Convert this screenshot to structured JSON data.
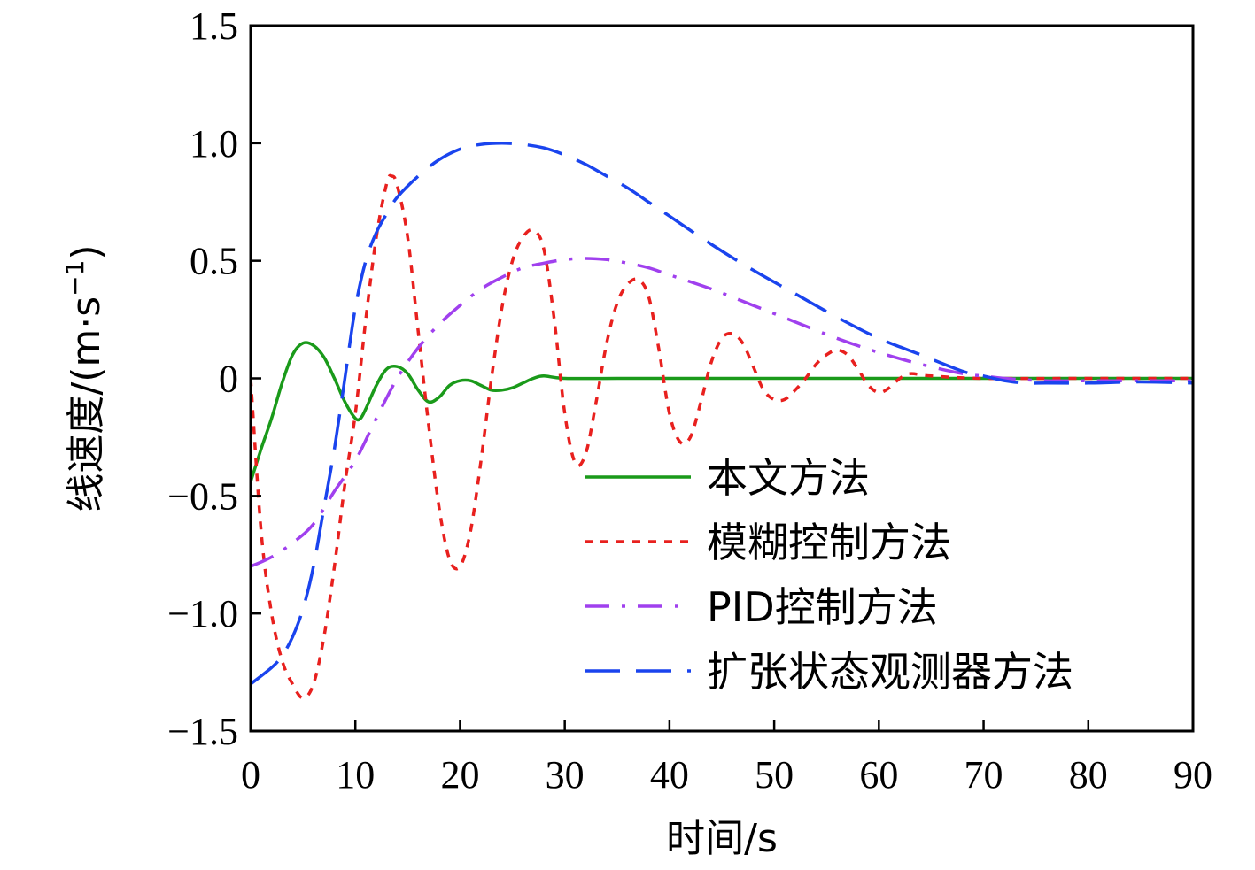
{
  "chart_data": {
    "type": "line",
    "title": "",
    "xlabel": "时间/s",
    "ylabel_main": "线速度/(m·s",
    "ylabel_sup": "−1",
    "ylabel_close": ")",
    "xlim": [
      0,
      90
    ],
    "ylim": [
      -1.5,
      1.5
    ],
    "xticks": [
      0,
      10,
      20,
      30,
      40,
      50,
      60,
      70,
      80,
      90
    ],
    "xtick_labels": [
      "0",
      "10",
      "20",
      "30",
      "40",
      "50",
      "60",
      "70",
      "80",
      "90"
    ],
    "yticks": [
      1.5,
      1.0,
      0.5,
      0,
      -0.5,
      -1.0,
      -1.5
    ],
    "ytick_labels": [
      "1.5",
      "1.0",
      "0.5",
      "0",
      "−0.5",
      "−1.0",
      "−1.5"
    ],
    "legend_position": "center-right",
    "series": [
      {
        "name": "本文方法",
        "color": "#1a9a1a",
        "dash": "solid",
        "x": [
          0,
          1,
          2,
          3,
          4,
          5,
          6,
          7,
          8,
          9,
          10,
          10.5,
          11,
          12,
          13,
          14,
          15,
          16,
          17,
          18,
          19,
          20,
          21,
          22,
          23,
          24,
          25,
          26,
          27,
          28,
          30,
          35,
          40,
          50,
          60,
          70,
          80,
          90
        ],
        "y": [
          -0.44,
          -0.3,
          -0.17,
          -0.02,
          0.1,
          0.15,
          0.14,
          0.09,
          0.0,
          -0.1,
          -0.17,
          -0.17,
          -0.13,
          -0.03,
          0.04,
          0.05,
          0.02,
          -0.05,
          -0.1,
          -0.08,
          -0.03,
          -0.01,
          -0.01,
          -0.03,
          -0.05,
          -0.05,
          -0.04,
          -0.02,
          0.0,
          0.01,
          0.0,
          0.0,
          0.0,
          0.0,
          0.0,
          0.0,
          0.0,
          0.0
        ]
      },
      {
        "name": "模糊控制方法",
        "color": "#e8201e",
        "dash": "dotted",
        "x": [
          0,
          1,
          2,
          3,
          4,
          5,
          6,
          7,
          8,
          9,
          10,
          11,
          12,
          13,
          13.5,
          14,
          15,
          16,
          17,
          18,
          19,
          20,
          21,
          22,
          23,
          24,
          25,
          26,
          27,
          28,
          29,
          30,
          31,
          32,
          33,
          34,
          35,
          36,
          37,
          38,
          39,
          40,
          41,
          42,
          43,
          44,
          45,
          46,
          47,
          48,
          49,
          50,
          51,
          52,
          53,
          54,
          55,
          56,
          57,
          58,
          59,
          60,
          61,
          62,
          63,
          65,
          70,
          80,
          90
        ],
        "y": [
          0.0,
          -0.65,
          -1.0,
          -1.2,
          -1.3,
          -1.36,
          -1.3,
          -1.1,
          -0.8,
          -0.45,
          -0.15,
          0.25,
          0.6,
          0.83,
          0.86,
          0.82,
          0.6,
          0.2,
          -0.2,
          -0.55,
          -0.77,
          -0.8,
          -0.65,
          -0.35,
          0.0,
          0.3,
          0.5,
          0.6,
          0.63,
          0.55,
          0.25,
          -0.15,
          -0.36,
          -0.32,
          -0.1,
          0.15,
          0.32,
          0.4,
          0.42,
          0.35,
          0.12,
          -0.15,
          -0.27,
          -0.25,
          -0.1,
          0.07,
          0.17,
          0.19,
          0.15,
          0.05,
          -0.05,
          -0.09,
          -0.09,
          -0.05,
          0.0,
          0.06,
          0.1,
          0.12,
          0.1,
          0.04,
          -0.03,
          -0.06,
          -0.04,
          0.0,
          0.02,
          0.01,
          0.0,
          0.0,
          0.0
        ]
      },
      {
        "name": "PID控制方法",
        "color": "#a040ee",
        "dash": "dashdot",
        "x": [
          0,
          2,
          4,
          6,
          8,
          10,
          12,
          14,
          16,
          18,
          20,
          22,
          24,
          26,
          28,
          30,
          32,
          34,
          36,
          38,
          40,
          44,
          48,
          52,
          56,
          60,
          64,
          68,
          70,
          72,
          76,
          80,
          85,
          90
        ],
        "y": [
          -0.8,
          -0.76,
          -0.7,
          -0.62,
          -0.48,
          -0.35,
          -0.17,
          0.0,
          0.13,
          0.23,
          0.31,
          0.38,
          0.43,
          0.47,
          0.49,
          0.505,
          0.51,
          0.505,
          0.49,
          0.47,
          0.44,
          0.38,
          0.31,
          0.24,
          0.17,
          0.11,
          0.06,
          0.02,
          0.01,
          0.0,
          -0.01,
          -0.01,
          -0.01,
          -0.01
        ]
      },
      {
        "name": "扩张状态观测器方法",
        "color": "#1a44ee",
        "dash": "longdash",
        "x": [
          0,
          2,
          3,
          4,
          5,
          6,
          7,
          8,
          9,
          10,
          11,
          12,
          13,
          14,
          16,
          18,
          20,
          22,
          24,
          26,
          28,
          30,
          32,
          34,
          36,
          38,
          40,
          44,
          48,
          52,
          56,
          60,
          64,
          68,
          70,
          72,
          74,
          76,
          80,
          85,
          90
        ],
        "y": [
          -1.3,
          -1.23,
          -1.18,
          -1.1,
          -0.98,
          -0.8,
          -0.55,
          -0.3,
          0.0,
          0.3,
          0.5,
          0.62,
          0.7,
          0.77,
          0.86,
          0.93,
          0.975,
          0.995,
          1.0,
          0.995,
          0.98,
          0.95,
          0.91,
          0.86,
          0.81,
          0.75,
          0.69,
          0.57,
          0.46,
          0.36,
          0.26,
          0.17,
          0.1,
          0.03,
          0.01,
          -0.01,
          -0.02,
          -0.02,
          -0.02,
          -0.015,
          -0.02
        ]
      }
    ]
  }
}
